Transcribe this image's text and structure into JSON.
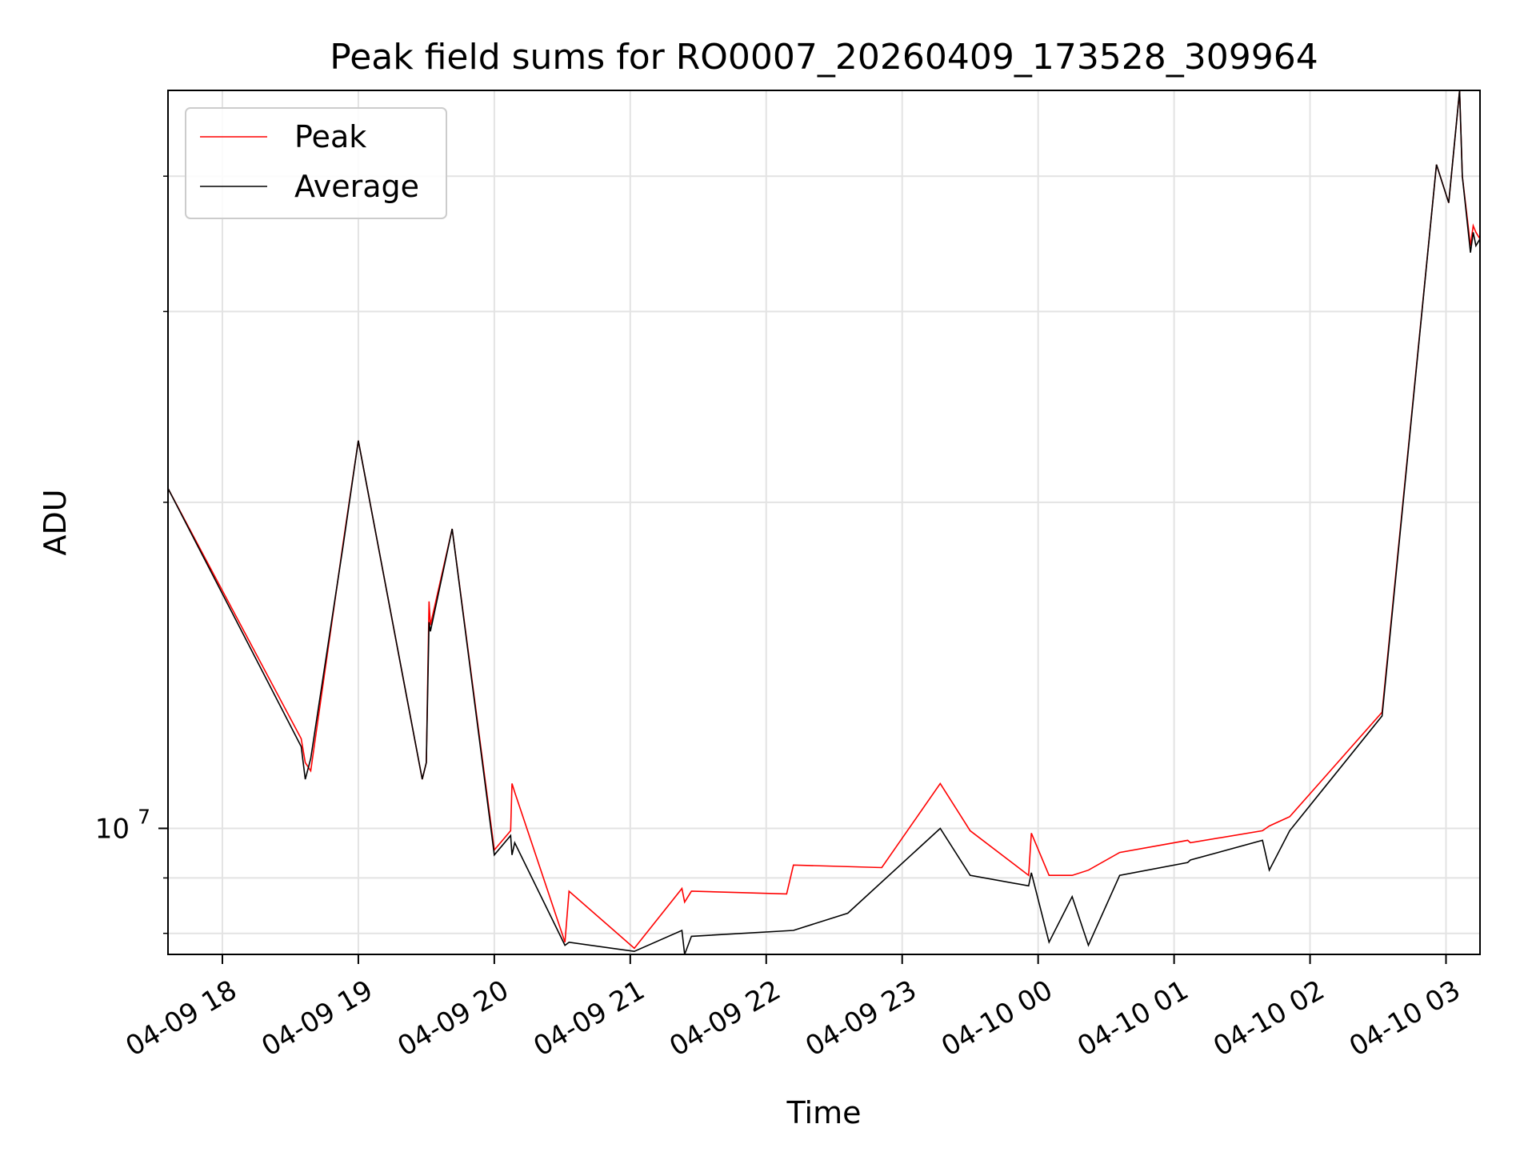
{
  "chart_data": {
    "type": "line",
    "title": "Peak field sums for RO0007_20260409_173528_309964",
    "xlabel": "Time",
    "ylabel": "ADU",
    "yscale": "log",
    "ylim": [
      7650000,
      48000000
    ],
    "xlim": [
      -0.4,
      9.25
    ],
    "grid": true,
    "legend_position": "top-left",
    "x_unit": "hours since 04-09 18:00",
    "x_ticks": [
      {
        "value": 0,
        "label": "04-09 18"
      },
      {
        "value": 1,
        "label": "04-09 19"
      },
      {
        "value": 2,
        "label": "04-09 20"
      },
      {
        "value": 3,
        "label": "04-09 21"
      },
      {
        "value": 4,
        "label": "04-09 22"
      },
      {
        "value": 5,
        "label": "04-09 23"
      },
      {
        "value": 6,
        "label": "04-10 00"
      },
      {
        "value": 7,
        "label": "04-10 01"
      },
      {
        "value": 8,
        "label": "04-10 02"
      },
      {
        "value": 9,
        "label": "04-10 03"
      }
    ],
    "y_major_ticks": [
      {
        "value": 10000000,
        "base": "10",
        "exp": "7"
      }
    ],
    "y_minor_ticks": [
      8000000,
      9000000,
      20000000,
      30000000,
      40000000
    ],
    "series": [
      {
        "name": "Peak",
        "color": "#ff0000",
        "x": [
          -0.4,
          0.58,
          0.61,
          0.65,
          0.89,
          1.0,
          1.47,
          1.5,
          1.52,
          1.53,
          1.69,
          2.0,
          2.12,
          2.13,
          2.15,
          2.52,
          2.55,
          3.03,
          3.38,
          3.4,
          3.45,
          4.15,
          4.2,
          4.85,
          5.28,
          5.5,
          5.93,
          5.95,
          6.08,
          6.25,
          6.37,
          6.6,
          7.1,
          7.12,
          7.65,
          7.7,
          7.85,
          8.53,
          8.93,
          9.02,
          9.1,
          9.12,
          9.18,
          9.2,
          9.22,
          9.25
        ],
        "values": [
          20600000,
          12100000,
          11500000,
          11300000,
          18400000,
          22800000,
          11100000,
          11500000,
          16200000,
          15400000,
          18900000,
          9550000,
          9950000,
          11000000,
          10800000,
          7850000,
          8750000,
          7750000,
          8800000,
          8550000,
          8750000,
          8700000,
          9250000,
          9200000,
          11000000,
          9950000,
          9050000,
          9900000,
          9050000,
          9050000,
          9150000,
          9500000,
          9750000,
          9700000,
          9950000,
          10050000,
          10250000,
          12800000,
          41000000,
          37800000,
          48000000,
          40000000,
          34500000,
          36000000,
          35500000,
          35000000
        ]
      },
      {
        "name": "Average",
        "color": "#000000",
        "x": [
          -0.4,
          0.58,
          0.61,
          0.65,
          0.89,
          1.0,
          1.47,
          1.5,
          1.52,
          1.53,
          1.69,
          2.0,
          2.12,
          2.13,
          2.15,
          2.52,
          2.55,
          3.03,
          3.38,
          3.4,
          3.45,
          4.2,
          4.6,
          5.28,
          5.5,
          5.93,
          5.95,
          6.08,
          6.25,
          6.37,
          6.6,
          7.1,
          7.12,
          7.65,
          7.7,
          7.85,
          8.53,
          8.93,
          9.02,
          9.1,
          9.12,
          9.18,
          9.2,
          9.22,
          9.25
        ],
        "values": [
          20600000,
          11900000,
          11100000,
          11600000,
          18300000,
          22800000,
          11100000,
          11500000,
          15500000,
          15200000,
          18900000,
          9450000,
          9850000,
          9450000,
          9700000,
          7800000,
          7850000,
          7700000,
          8050000,
          7650000,
          7950000,
          8050000,
          8350000,
          10000000,
          9050000,
          8850000,
          9100000,
          7850000,
          8650000,
          7800000,
          9050000,
          9300000,
          9350000,
          9750000,
          9150000,
          9950000,
          12700000,
          41000000,
          37800000,
          48000000,
          40000000,
          34000000,
          35500000,
          34500000,
          35000000
        ]
      }
    ]
  }
}
